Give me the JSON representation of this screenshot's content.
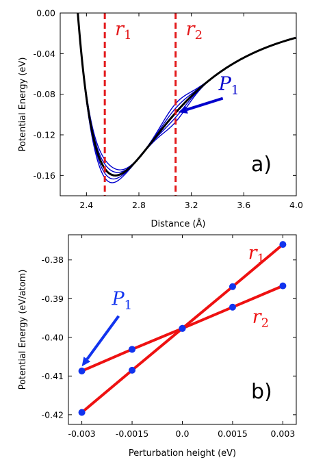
{
  "chart_data": [
    {
      "type": "line",
      "panel_label": "a)",
      "xlabel": "Distance (Å)",
      "ylabel": "Potential Energy (eV)",
      "xlim": [
        2.2,
        4.0
      ],
      "ylim": [
        -0.18,
        0.0
      ],
      "xticks": [
        "2.4",
        "2.8",
        "3.2",
        "3.6",
        "4.0"
      ],
      "xtick_values": [
        2.4,
        2.8,
        3.2,
        3.6,
        4.0
      ],
      "yticks": [
        "0.00",
        "-0.04",
        "-0.08",
        "-0.12",
        "-0.16"
      ],
      "ytick_values": [
        0.0,
        -0.04,
        -0.08,
        -0.12,
        -0.16
      ],
      "potential_params": {
        "epsilon": 0.16,
        "r_min": 2.62,
        "r_start": 2.3
      },
      "series": [
        {
          "role": "unperturbed",
          "color": "#000000",
          "x": [
            2.3,
            2.35,
            2.4,
            2.45,
            2.5,
            2.55,
            2.6,
            2.65,
            2.7,
            2.8,
            2.9,
            3.0,
            3.1,
            3.2,
            3.3,
            3.4,
            3.5,
            3.6,
            3.7,
            3.8,
            3.9,
            4.0
          ],
          "y": [
            0.0,
            -0.049,
            -0.093,
            -0.126,
            -0.148,
            -0.158,
            -0.161,
            -0.159,
            -0.155,
            -0.14,
            -0.123,
            -0.106,
            -0.09,
            -0.077,
            -0.066,
            -0.057,
            -0.049,
            -0.042,
            -0.036,
            -0.031,
            -0.027,
            -0.023
          ]
        },
        {
          "role": "perturbed",
          "color": "#0000cc",
          "bump_heights": [
            -0.009,
            -0.0045,
            0.0045,
            0.009
          ],
          "bump_widths": [
            0.14,
            0.14
          ],
          "bump_centers": [
            2.54,
            3.08
          ]
        }
      ],
      "markers": [
        {
          "label": "r",
          "subscript": "1",
          "x": 2.54,
          "color": "#e31a1c"
        },
        {
          "label": "r",
          "subscript": "2",
          "x": 3.08,
          "color": "#e31a1c"
        }
      ],
      "annotation": {
        "label": "P",
        "subscript": "1",
        "color": "#0000cc",
        "points_to_x": 3.1,
        "points_to_y": -0.0978,
        "from_x": 3.44,
        "from_y": -0.084
      }
    },
    {
      "type": "line",
      "panel_label": "b)",
      "xlabel": "Perturbation height (eV)",
      "ylabel": "Potential Energy (eV/atom)",
      "xlim": [
        -0.0034,
        0.0034
      ],
      "ylim": [
        -0.4225,
        -0.3735
      ],
      "xticks": [
        "-0.003",
        "-0.0015",
        "0.0",
        "0.0015",
        "0.003"
      ],
      "xtick_values": [
        -0.003,
        -0.0015,
        0.0,
        0.0015,
        0.003
      ],
      "yticks": [
        "-0.38",
        "-0.39",
        "-0.40",
        "-0.41",
        "-0.42"
      ],
      "ytick_values": [
        -0.38,
        -0.39,
        -0.4,
        -0.41,
        -0.42
      ],
      "series": [
        {
          "label": "r",
          "subscript": "1",
          "color": "#ee1111",
          "marker_color": "#1133ee",
          "x": [
            -0.003,
            -0.0015,
            0.0,
            0.0015,
            0.003
          ],
          "y": [
            -0.4194,
            -0.4085,
            -0.3977,
            -0.3869,
            -0.376
          ]
        },
        {
          "label": "r",
          "subscript": "2",
          "color": "#ee1111",
          "marker_color": "#1133ee",
          "x": [
            -0.003,
            -0.0015,
            0.0,
            0.0015,
            0.003
          ],
          "y": [
            -0.4087,
            -0.4031,
            -0.3977,
            -0.3922,
            -0.3867
          ]
        }
      ],
      "annotation": {
        "label": "P",
        "subscript": "1",
        "color": "#1133ee",
        "points_to_x": -0.003,
        "points_to_y": -0.4075,
        "from_x": -0.0019,
        "from_y": -0.3945
      }
    }
  ]
}
